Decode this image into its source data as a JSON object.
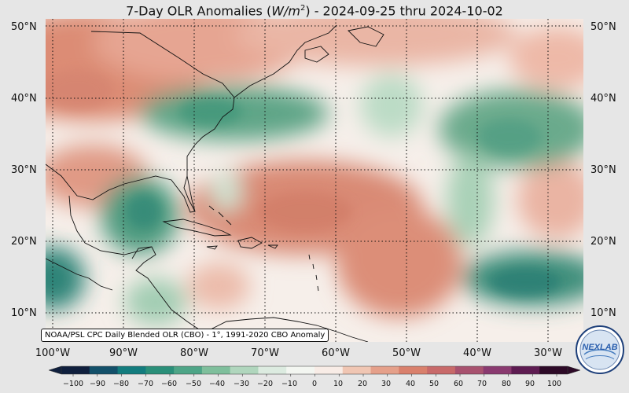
{
  "title": {
    "prefix": "7-Day OLR Anomalies (",
    "unit_base": "W/m",
    "unit_exp": "2",
    "suffix": ") - 2024-09-25 thru 2024-10-02"
  },
  "source_note": "NOAA/PSL CPC Daily Blended OLR (CBO) - 1°, 1991-2020 CBO Anomaly",
  "map": {
    "lon_range": [
      -102.5,
      -26.5
    ],
    "lat_range": [
      6.5,
      51.5
    ],
    "grid_lines": "dotted",
    "lat_labels": [
      "50°N",
      "40°N",
      "30°N",
      "20°N",
      "10°N"
    ],
    "lon_labels": [
      "100°W",
      "90°W",
      "80°W",
      "70°W",
      "60°W",
      "50°W",
      "40°W",
      "30°W"
    ]
  },
  "colorbar": {
    "ticks": [
      "−100",
      "−90",
      "−80",
      "−70",
      "−60",
      "−50",
      "−40",
      "−30",
      "−20",
      "−10",
      "0",
      "10",
      "20",
      "30",
      "40",
      "50",
      "60",
      "70",
      "80",
      "90",
      "100"
    ],
    "range": [
      -100,
      100
    ],
    "negative_colors": [
      "#0f1f3d",
      "#13506a",
      "#137c7e",
      "#2a8f79",
      "#4ea587",
      "#7fbf9c",
      "#b0d6bd",
      "#dcebe0",
      "#f3f6f1"
    ],
    "positive_colors": [
      "#f8ece6",
      "#f0c6b3",
      "#e5a08a",
      "#d9806c",
      "#c86a6a",
      "#a8526f",
      "#8a3a70",
      "#5e1c52",
      "#2d0a27"
    ]
  },
  "logo_text": "NEXLAB"
}
